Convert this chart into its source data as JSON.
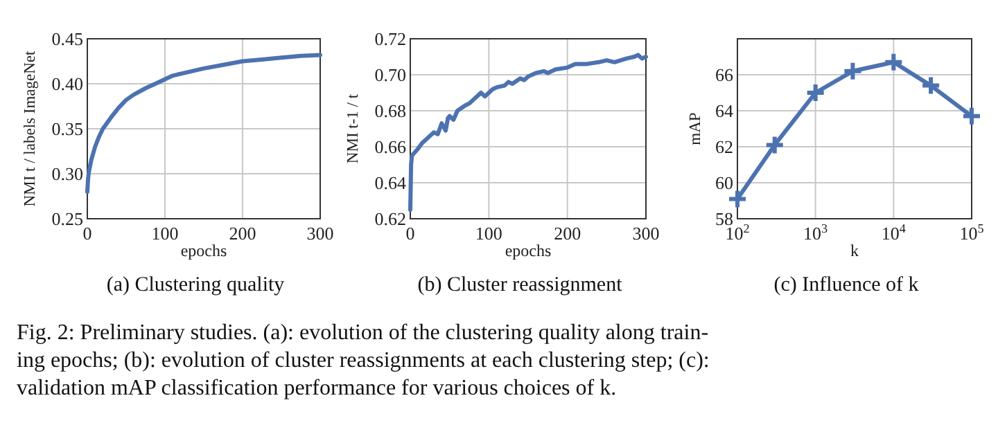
{
  "chart_data": [
    {
      "type": "line",
      "title": "(a) Clustering quality",
      "xlabel": "epochs",
      "ylabel": "NMI t / labels ImageNet",
      "xlim": [
        0,
        300
      ],
      "ylim": [
        0.25,
        0.45
      ],
      "xticks": [
        0,
        100,
        200,
        300
      ],
      "yticks": [
        0.25,
        {
          "value": 0.3,
          "label": "0.30"
        },
        0.35,
        {
          "value": 0.4,
          "label": "0.40"
        },
        0.45
      ],
      "grid": true,
      "marker": "none",
      "series": [
        {
          "color": "#4c72b0",
          "x": [
            0,
            1,
            2,
            5,
            10,
            15,
            20,
            30,
            40,
            50,
            60,
            75,
            90,
            100,
            110,
            125,
            150,
            175,
            200,
            225,
            250,
            275,
            300
          ],
          "values": [
            0.28,
            0.295,
            0.302,
            0.315,
            0.33,
            0.341,
            0.35,
            0.362,
            0.373,
            0.382,
            0.388,
            0.395,
            0.401,
            0.405,
            0.409,
            0.412,
            0.417,
            0.421,
            0.425,
            0.427,
            0.429,
            0.431,
            0.432
          ]
        }
      ]
    },
    {
      "type": "line",
      "title": "(b) Cluster reassignment",
      "xlabel": "epochs",
      "ylabel": "NMI t-1 / t",
      "xlim": [
        0,
        300
      ],
      "ylim": [
        0.62,
        0.72
      ],
      "xticks": [
        0,
        100,
        200,
        300
      ],
      "yticks": [
        0.62,
        0.64,
        0.66,
        0.68,
        {
          "value": 0.7,
          "label": "0.70"
        },
        0.72
      ],
      "grid": true,
      "marker": "none",
      "series": [
        {
          "color": "#4c72b0",
          "x": [
            0,
            1,
            2,
            4,
            10,
            15,
            20,
            25,
            30,
            35,
            40,
            45,
            48,
            50,
            55,
            60,
            70,
            75,
            80,
            90,
            95,
            100,
            105,
            110,
            120,
            125,
            130,
            140,
            145,
            150,
            160,
            170,
            175,
            185,
            200,
            210,
            225,
            240,
            250,
            260,
            275,
            285,
            290,
            295,
            300
          ],
          "values": [
            0.625,
            0.65,
            0.655,
            0.656,
            0.659,
            0.662,
            0.664,
            0.666,
            0.668,
            0.667,
            0.673,
            0.669,
            0.676,
            0.677,
            0.675,
            0.68,
            0.683,
            0.684,
            0.686,
            0.69,
            0.688,
            0.69,
            0.692,
            0.693,
            0.694,
            0.696,
            0.695,
            0.698,
            0.697,
            0.699,
            0.701,
            0.702,
            0.701,
            0.703,
            0.704,
            0.706,
            0.706,
            0.707,
            0.708,
            0.707,
            0.709,
            0.71,
            0.711,
            0.709,
            0.71
          ]
        }
      ]
    },
    {
      "type": "line",
      "title": "(c) Influence of k",
      "xlabel": "k",
      "ylabel": "mAP",
      "log": "x",
      "xlim": [
        100,
        100000
      ],
      "ylim": [
        58,
        68
      ],
      "xticks": [
        {
          "value": 100,
          "label": "10$^{2}$"
        },
        {
          "value": 1000,
          "label": "10$^{3}$"
        },
        {
          "value": 10000,
          "label": "10$^{4}$"
        },
        {
          "value": 100000,
          "label": "10$^{5}$"
        }
      ],
      "yticks": [
        58,
        60,
        62,
        64,
        66
      ],
      "grid": true,
      "marker": "cross",
      "series": [
        {
          "color": "#4c72b0",
          "x": [
            100,
            300,
            1000,
            3000,
            10000,
            30000,
            100000
          ],
          "values": [
            59.1,
            62.1,
            65.0,
            66.2,
            66.7,
            65.4,
            63.7
          ]
        }
      ],
      "annotations": [
        "Fig. 2: Preliminary studies. (a): evolution of the clustering quality along train-",
        "ing epochs; (b): evolution of cluster reassignments at each clustering step; (c):",
        "validation mAP classification performance for various choices of k."
      ]
    }
  ]
}
